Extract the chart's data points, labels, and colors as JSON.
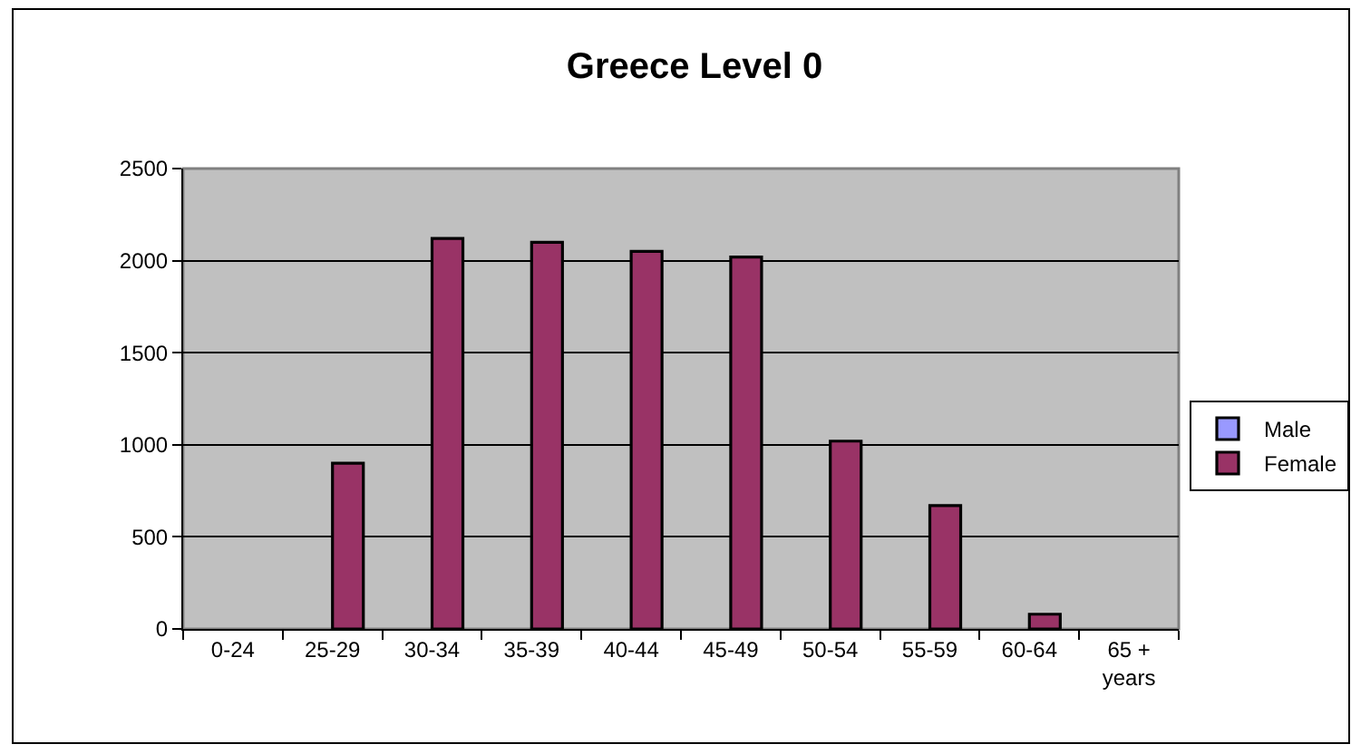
{
  "chart_data": {
    "type": "bar",
    "title": "Greece Level 0",
    "categories": [
      "0-24",
      "25-29",
      "30-34",
      "35-39",
      "40-44",
      "45-49",
      "50-54",
      "55-59",
      "60-64",
      "65 +\nyears"
    ],
    "series": [
      {
        "name": "Male",
        "color": "#9999ff",
        "values": [
          null,
          null,
          null,
          null,
          null,
          null,
          null,
          null,
          null,
          null
        ]
      },
      {
        "name": "Female",
        "color": "#993366",
        "values": [
          null,
          900,
          2120,
          2100,
          2050,
          2020,
          1020,
          670,
          80,
          null
        ]
      }
    ],
    "ylim": [
      0,
      2500
    ],
    "yticks": [
      0,
      500,
      1000,
      1500,
      2000,
      2500
    ],
    "grid": "y",
    "legend": "right"
  }
}
